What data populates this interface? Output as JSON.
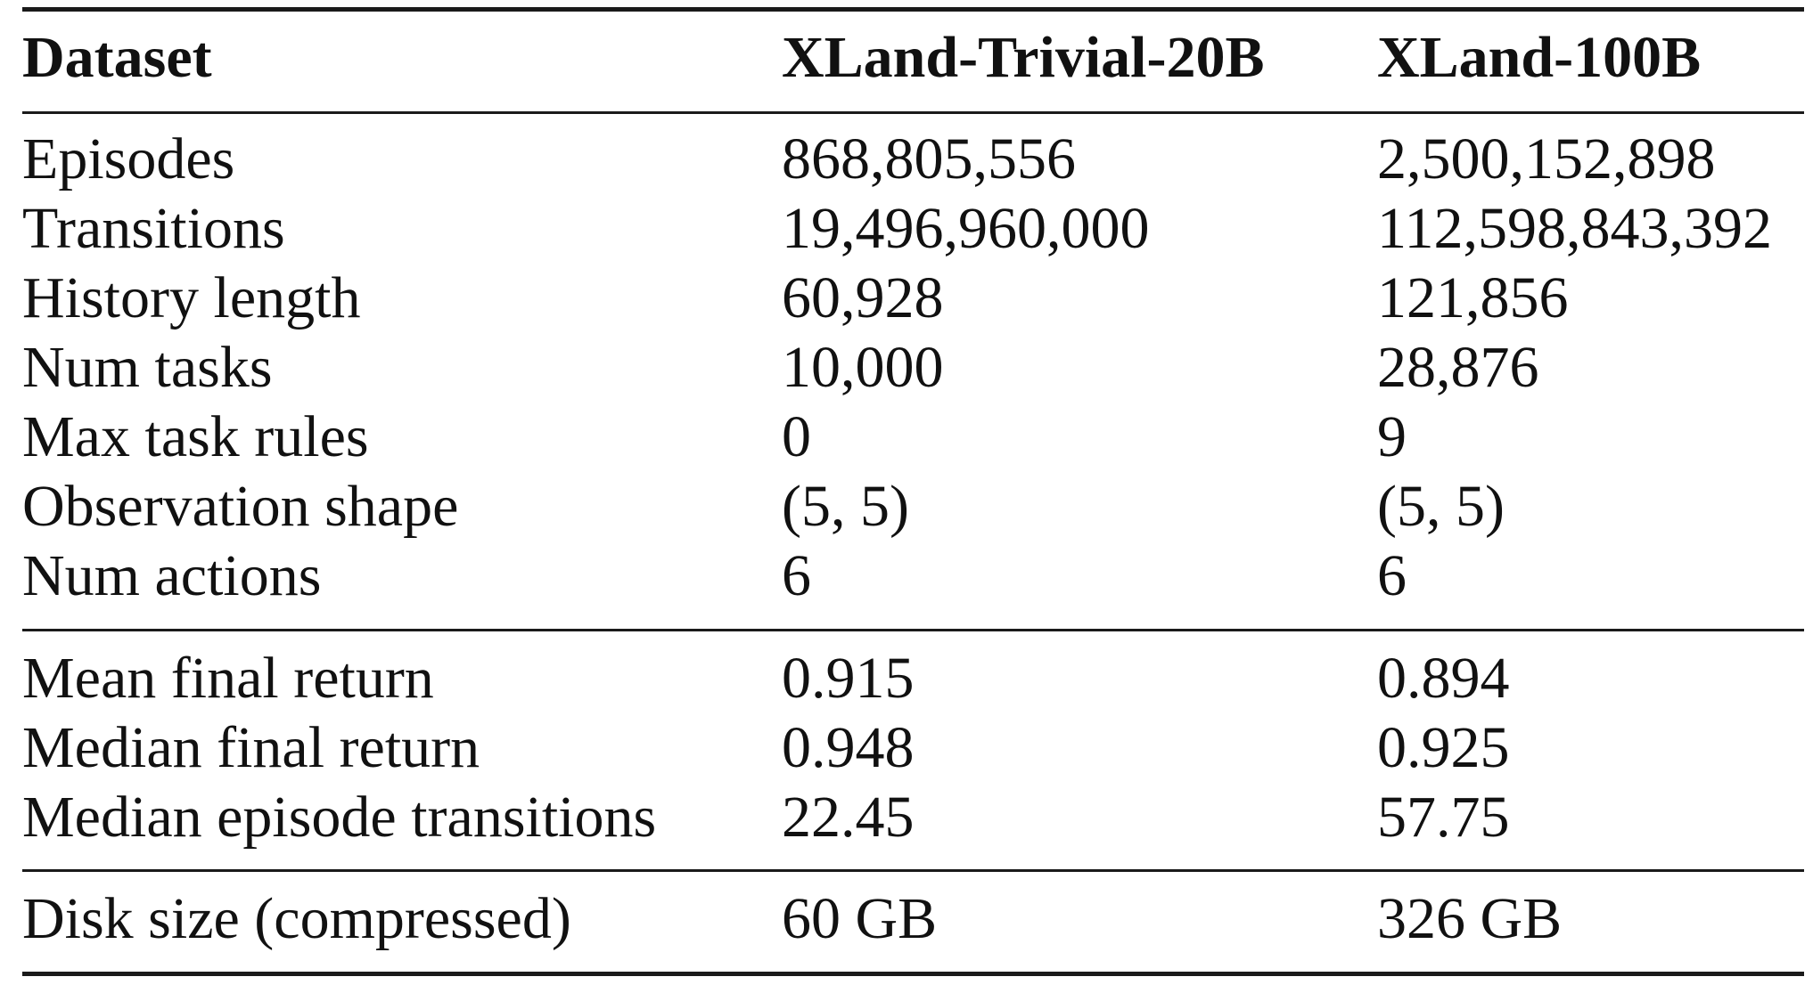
{
  "table": {
    "header": [
      "Dataset",
      "XLand-Trivial-20B",
      "XLand-100B"
    ],
    "groups": [
      {
        "rows": [
          [
            "Episodes",
            "868,805,556",
            "2,500,152,898"
          ],
          [
            "Transitions",
            "19,496,960,000",
            "112,598,843,392"
          ],
          [
            "History length",
            "60,928",
            "121,856"
          ],
          [
            "Num tasks",
            "10,000",
            "28,876"
          ],
          [
            "Max task rules",
            "0",
            "9"
          ],
          [
            "Observation shape",
            "(5, 5)",
            "(5, 5)"
          ],
          [
            "Num actions",
            "6",
            "6"
          ]
        ]
      },
      {
        "rows": [
          [
            "Mean final return",
            "0.915",
            "0.894"
          ],
          [
            "Median final return",
            "0.948",
            "0.925"
          ],
          [
            "Median episode transitions",
            "22.45",
            "57.75"
          ]
        ]
      },
      {
        "rows": [
          [
            "Disk size (compressed)",
            "60 GB",
            "326 GB"
          ]
        ]
      }
    ]
  }
}
